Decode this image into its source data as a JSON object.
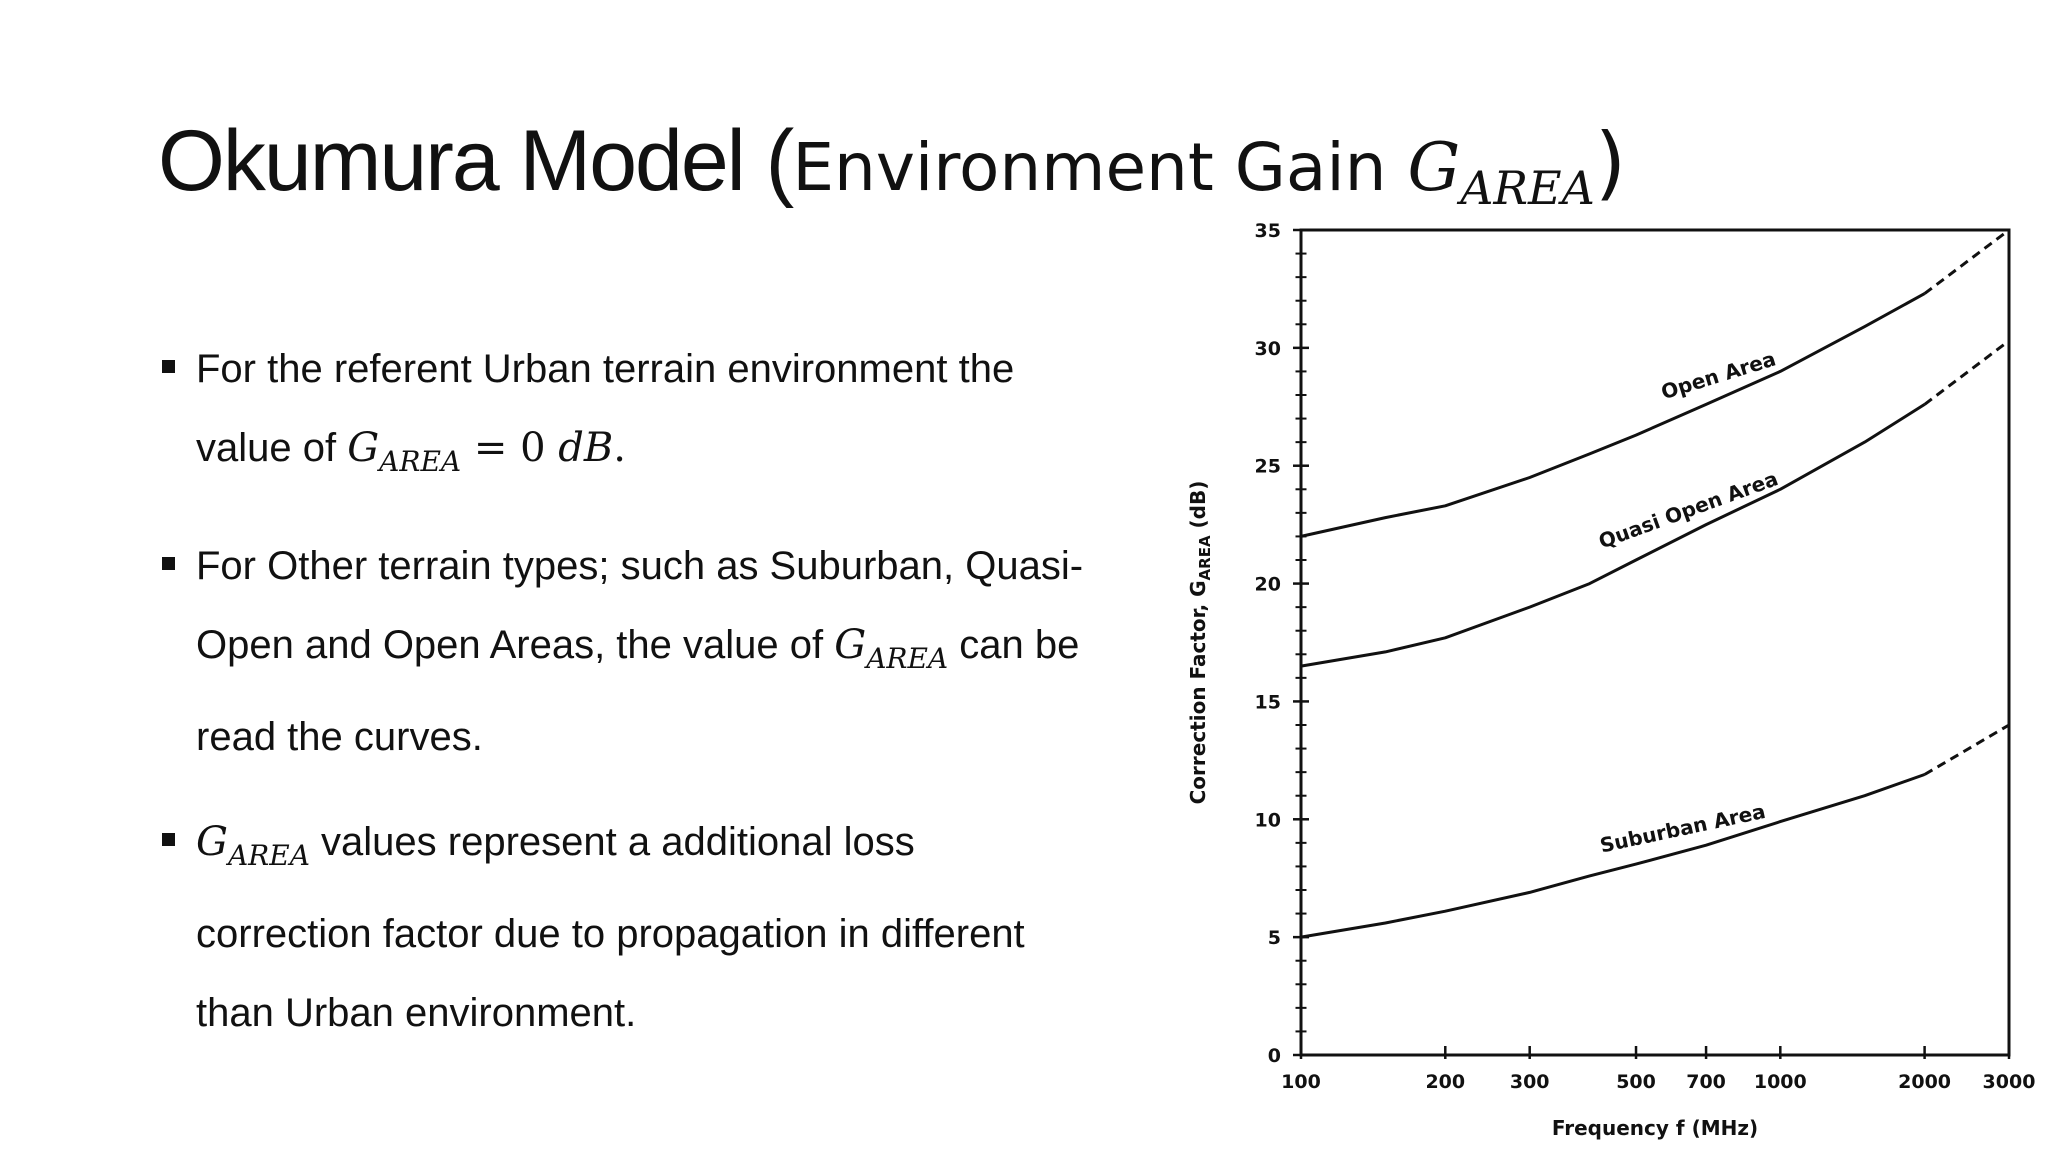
{
  "slide": {
    "title_main": "Okumura Model (",
    "title_sub": "Environment Gain ",
    "title_var": "G",
    "title_var_sub": "AREA",
    "title_close": ")",
    "bullets": [
      {
        "line1": "For the referent Urban terrain environment the",
        "line2_pre": "value of ",
        "var": "G",
        "var_sub": "AREA",
        "line2_post": " = 0 ",
        "unit": "dB",
        "end": "."
      },
      {
        "line1": "For Other terrain types; such as Suburban, Quasi-",
        "line2_pre": "Open and Open Areas, the value of ",
        "var": "G",
        "var_sub": "AREA",
        "line2_post": " can be",
        "line3": "read the curves."
      },
      {
        "var": "G",
        "var_sub": "AREA",
        "line1_post": " values represent a additional loss",
        "line2": "correction factor due to propagation in different",
        "line3": "than Urban environment."
      }
    ]
  },
  "chart_data": {
    "type": "line",
    "xlabel": "Frequency  f  (MHz)",
    "ylabel": "Correction Factor, G",
    "ylabel_sub": "AREA",
    "ylabel_unit": " (dB)",
    "xscale": "log",
    "xlim": [
      100,
      3000
    ],
    "ylim": [
      0,
      35
    ],
    "x_ticks": [
      100,
      200,
      300,
      500,
      700,
      1000,
      2000,
      3000
    ],
    "x_tick_labels": [
      "100",
      "200",
      "300",
      "500",
      "700",
      "1000",
      "2000",
      "3000"
    ],
    "y_ticks": [
      0,
      5,
      10,
      15,
      20,
      25,
      30,
      35
    ],
    "y_tick_labels": [
      "0",
      "5",
      "10",
      "15",
      "20",
      "25",
      "30",
      "35"
    ],
    "grid": false,
    "solid_until_x": 2000,
    "series": [
      {
        "name": "Open Area",
        "x": [
          100,
          150,
          200,
          300,
          400,
          500,
          700,
          1000,
          1500,
          2000,
          3000
        ],
        "y": [
          22.0,
          22.8,
          23.3,
          24.5,
          25.5,
          26.3,
          27.6,
          29.0,
          30.9,
          32.3,
          35.0
        ]
      },
      {
        "name": "Quasi Open Area",
        "x": [
          100,
          150,
          200,
          300,
          400,
          500,
          700,
          1000,
          1500,
          2000,
          3000
        ],
        "y": [
          16.5,
          17.1,
          17.7,
          19.0,
          20.0,
          21.0,
          22.5,
          24.0,
          26.0,
          27.6,
          30.3
        ]
      },
      {
        "name": "Suburban Area",
        "x": [
          100,
          150,
          200,
          300,
          400,
          500,
          700,
          1000,
          1500,
          2000,
          3000
        ],
        "y": [
          5.0,
          5.6,
          6.1,
          6.9,
          7.6,
          8.1,
          8.9,
          9.9,
          11.0,
          11.9,
          14.0
        ]
      }
    ]
  }
}
